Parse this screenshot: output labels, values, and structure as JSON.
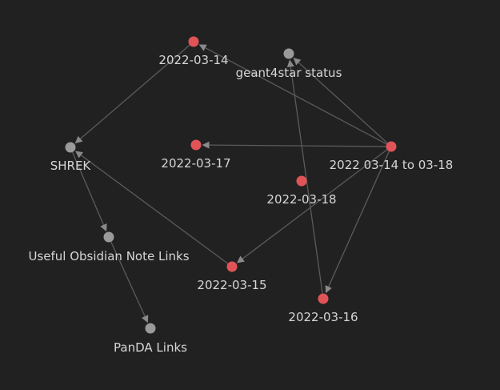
{
  "graph": {
    "colors": {
      "background": "#212121",
      "node_daily": "#e05458",
      "node_default": "#9a9a9a",
      "edge": "#5b5b5b",
      "label": "#d6d6d6"
    },
    "nodes": [
      {
        "id": "n-2022-03-14",
        "label": "2022-03-14",
        "kind": "daily"
      },
      {
        "id": "n-geant4star",
        "label": "geant4star status",
        "kind": "default"
      },
      {
        "id": "n-shrek",
        "label": "SHREK",
        "kind": "default"
      },
      {
        "id": "n-2022-03-17",
        "label": "2022-03-17",
        "kind": "daily"
      },
      {
        "id": "n-range",
        "label": "2022 03-14 to 03-18",
        "kind": "daily"
      },
      {
        "id": "n-2022-03-18",
        "label": "2022-03-18",
        "kind": "daily"
      },
      {
        "id": "n-obsidian",
        "label": "Useful Obsidian Note Links",
        "kind": "default"
      },
      {
        "id": "n-2022-03-15",
        "label": "2022-03-15",
        "kind": "daily"
      },
      {
        "id": "n-2022-03-16",
        "label": "2022-03-16",
        "kind": "daily"
      },
      {
        "id": "n-panda",
        "label": "PanDA Links",
        "kind": "default"
      }
    ],
    "edges": [
      {
        "from": "n-2022-03-14",
        "to": "n-shrek"
      },
      {
        "from": "n-range",
        "to": "n-2022-03-14"
      },
      {
        "from": "n-range",
        "to": "n-geant4star"
      },
      {
        "from": "n-range",
        "to": "n-2022-03-17"
      },
      {
        "from": "n-range",
        "to": "n-2022-03-15"
      },
      {
        "from": "n-range",
        "to": "n-2022-03-16"
      },
      {
        "from": "n-2022-03-16",
        "to": "n-geant4star"
      },
      {
        "from": "n-2022-03-15",
        "to": "n-shrek"
      },
      {
        "from": "n-shrek",
        "to": "n-obsidian"
      },
      {
        "from": "n-obsidian",
        "to": "n-panda"
      }
    ]
  }
}
